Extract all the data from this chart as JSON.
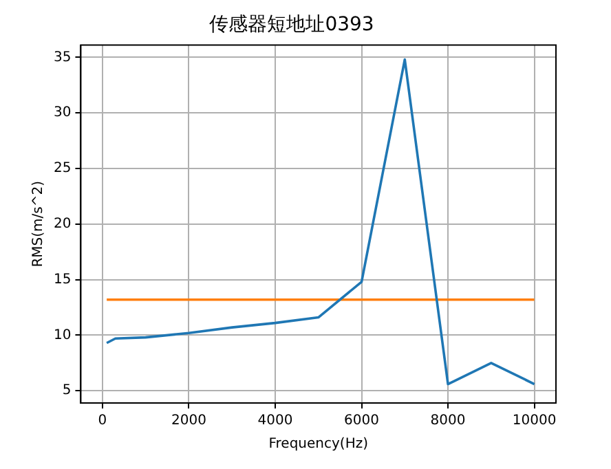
{
  "chart_data": {
    "type": "line",
    "title": "传感器短地址0393",
    "xlabel": "Frequency(Hz)",
    "ylabel": "RMS(m/s^2)",
    "series": [
      {
        "color": "#1f77b4",
        "x": [
          100,
          300,
          1000,
          2000,
          3000,
          4000,
          5000,
          6000,
          7000,
          8000,
          9000,
          10000
        ],
        "values": [
          9.3,
          9.7,
          9.8,
          10.2,
          10.7,
          11.1,
          11.6,
          14.8,
          34.8,
          5.6,
          7.5,
          5.6
        ]
      },
      {
        "color": "#ff7f0e",
        "x": [
          100,
          10000
        ],
        "values": [
          13.2,
          13.2
        ]
      }
    ],
    "xlim": [
      -500,
      10500
    ],
    "xticks": [
      0,
      2000,
      4000,
      6000,
      8000,
      10000
    ],
    "ylim": [
      3.9,
      36.1
    ],
    "yticks": [
      5,
      10,
      15,
      20,
      25,
      30,
      35
    ],
    "grid": true,
    "legend": false,
    "marker": "none",
    "line_style": "solid"
  }
}
